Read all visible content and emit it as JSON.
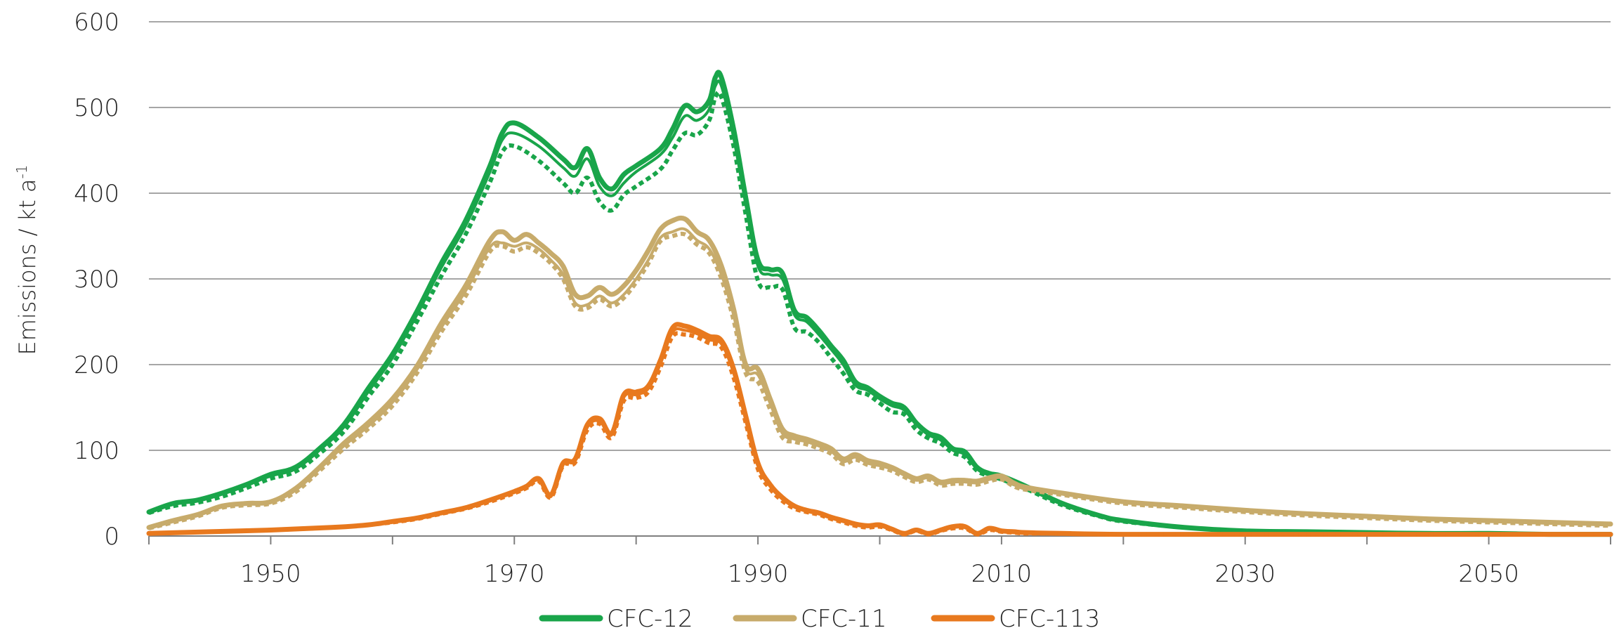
{
  "chart_data": {
    "type": "line",
    "title": "",
    "xlabel": "",
    "ylabel": "Emissions / kt a",
    "ylabel_superscript": "-1",
    "xlim": [
      1940,
      2060
    ],
    "ylim": [
      0,
      600
    ],
    "yticks": [
      0,
      100,
      200,
      300,
      400,
      500,
      600
    ],
    "xticks": [
      1950,
      1970,
      1990,
      2010,
      2030,
      2050
    ],
    "grid": "horizontal",
    "legend_position": "bottom-center",
    "colors": {
      "CFC-12": "#19a54a",
      "CFC-11": "#c7ab6b",
      "CFC-113": "#e8791e"
    },
    "legend": [
      "CFC-12",
      "CFC-11",
      "CFC-113"
    ],
    "series": [
      {
        "name": "CFC-12",
        "group": "CFC-12",
        "style": "thick",
        "x": [
          1940,
          1942,
          1944,
          1946,
          1948,
          1950,
          1952,
          1954,
          1956,
          1958,
          1960,
          1962,
          1964,
          1966,
          1968,
          1969,
          1970,
          1972,
          1974,
          1975,
          1976,
          1977,
          1978,
          1979,
          1980,
          1982,
          1983,
          1984,
          1985,
          1986,
          1986.5,
          1987,
          1988,
          1989,
          1990,
          1991,
          1992,
          1993,
          1994,
          1995,
          1996,
          1997,
          1998,
          1999,
          2000,
          2001,
          2002,
          2003,
          2004,
          2005,
          2006,
          2007,
          2008,
          2009,
          2010,
          2012,
          2015,
          2018,
          2020,
          2025,
          2030,
          2035,
          2040,
          2045,
          2050,
          2055,
          2060
        ],
        "values": [
          28,
          38,
          42,
          50,
          60,
          72,
          80,
          102,
          130,
          172,
          212,
          262,
          318,
          368,
          432,
          470,
          482,
          465,
          440,
          430,
          452,
          418,
          405,
          422,
          432,
          452,
          475,
          502,
          495,
          508,
          535,
          535,
          475,
          395,
          322,
          311,
          307,
          263,
          255,
          240,
          222,
          205,
          180,
          173,
          163,
          155,
          150,
          132,
          120,
          115,
          102,
          98,
          80,
          73,
          70,
          58,
          38,
          24,
          18,
          10,
          6,
          5,
          4,
          3,
          3,
          2,
          2
        ]
      },
      {
        "name": "",
        "group": "CFC-12",
        "style": "thin",
        "x": [
          1940,
          1942,
          1944,
          1946,
          1948,
          1950,
          1952,
          1954,
          1956,
          1958,
          1960,
          1962,
          1964,
          1966,
          1968,
          1969,
          1970,
          1972,
          1974,
          1975,
          1976,
          1977,
          1978,
          1979,
          1980,
          1982,
          1983,
          1984,
          1985,
          1986,
          1986.5,
          1987,
          1988,
          1989,
          1990,
          1991,
          1992,
          1993,
          1994,
          1995,
          1996,
          1997,
          1998,
          1999,
          2000,
          2001,
          2002,
          2003,
          2004,
          2005,
          2006,
          2007,
          2008,
          2009,
          2010,
          2012,
          2015,
          2018,
          2020,
          2025,
          2030,
          2035,
          2040,
          2045,
          2050,
          2055,
          2060
        ],
        "values": [
          28,
          37,
          41,
          49,
          59,
          70,
          78,
          100,
          127,
          168,
          208,
          258,
          313,
          362,
          425,
          462,
          470,
          455,
          430,
          420,
          440,
          408,
          397,
          412,
          425,
          445,
          465,
          490,
          485,
          498,
          525,
          525,
          465,
          387,
          315,
          305,
          300,
          258,
          250,
          235,
          218,
          200,
          176,
          170,
          160,
          152,
          147,
          130,
          118,
          112,
          100,
          95,
          78,
          71,
          68,
          56,
          37,
          23,
          17,
          10,
          6,
          5,
          4,
          3,
          3,
          2,
          2
        ]
      },
      {
        "name": "",
        "group": "CFC-12",
        "style": "dotted",
        "x": [
          1940,
          1942,
          1944,
          1946,
          1948,
          1950,
          1952,
          1954,
          1956,
          1958,
          1960,
          1962,
          1964,
          1966,
          1968,
          1969,
          1970,
          1972,
          1974,
          1975,
          1976,
          1977,
          1978,
          1979,
          1980,
          1982,
          1983,
          1984,
          1985,
          1986,
          1986.5,
          1987,
          1988,
          1989,
          1990,
          1991,
          1992,
          1993,
          1994,
          1995,
          1996,
          1997,
          1998,
          1999,
          2000,
          2001,
          2002,
          2003,
          2004,
          2005,
          2006,
          2007,
          2008,
          2009,
          2010,
          2012,
          2015,
          2018,
          2020,
          2025,
          2030,
          2035,
          2040,
          2045,
          2050,
          2055,
          2060
        ],
        "values": [
          27,
          35,
          39,
          46,
          56,
          67,
          75,
          96,
          122,
          162,
          200,
          250,
          303,
          352,
          413,
          448,
          455,
          438,
          412,
          400,
          418,
          390,
          380,
          398,
          408,
          428,
          450,
          470,
          468,
          485,
          512,
          512,
          455,
          375,
          298,
          290,
          288,
          243,
          238,
          226,
          208,
          190,
          170,
          165,
          155,
          145,
          142,
          124,
          114,
          108,
          97,
          92,
          76,
          70,
          66,
          55,
          36,
          23,
          17,
          10,
          6,
          5,
          4,
          3,
          3,
          2,
          2
        ]
      },
      {
        "name": "CFC-11",
        "group": "CFC-11",
        "style": "thick",
        "x": [
          1940,
          1942,
          1944,
          1946,
          1948,
          1950,
          1952,
          1954,
          1956,
          1958,
          1960,
          1962,
          1964,
          1966,
          1968,
          1969,
          1970,
          1971,
          1972,
          1973,
          1974,
          1975,
          1976,
          1977,
          1978,
          1979,
          1980,
          1981,
          1982,
          1983,
          1984,
          1985,
          1986,
          1987,
          1988,
          1989,
          1990,
          1991,
          1992,
          1993,
          1994,
          1995,
          1996,
          1997,
          1998,
          1999,
          2000,
          2001,
          2002,
          2003,
          2004,
          2005,
          2006,
          2007,
          2008,
          2009,
          2010,
          2011,
          2012,
          2015,
          2020,
          2025,
          2030,
          2035,
          2040,
          2045,
          2050,
          2055,
          2060
        ],
        "values": [
          10,
          18,
          25,
          35,
          38,
          40,
          55,
          80,
          108,
          132,
          160,
          198,
          248,
          292,
          345,
          355,
          345,
          352,
          342,
          330,
          315,
          282,
          280,
          290,
          282,
          292,
          310,
          333,
          358,
          368,
          370,
          355,
          345,
          315,
          265,
          200,
          195,
          160,
          125,
          117,
          113,
          108,
          102,
          90,
          95,
          88,
          85,
          80,
          73,
          67,
          70,
          63,
          65,
          65,
          64,
          68,
          70,
          62,
          57,
          50,
          40,
          35,
          30,
          26,
          23,
          20,
          18,
          16,
          14
        ]
      },
      {
        "name": "",
        "group": "CFC-11",
        "style": "thin",
        "x": [
          1940,
          1942,
          1944,
          1946,
          1948,
          1950,
          1952,
          1954,
          1956,
          1958,
          1960,
          1962,
          1964,
          1966,
          1968,
          1969,
          1970,
          1971,
          1972,
          1973,
          1974,
          1975,
          1976,
          1977,
          1978,
          1979,
          1980,
          1981,
          1982,
          1983,
          1984,
          1985,
          1986,
          1987,
          1988,
          1989,
          1990,
          1991,
          1992,
          1993,
          1994,
          1995,
          1996,
          1997,
          1998,
          1999,
          2000,
          2001,
          2002,
          2003,
          2004,
          2005,
          2006,
          2007,
          2008,
          2009,
          2010,
          2011,
          2012,
          2015,
          2020,
          2025,
          2030,
          2035,
          2040,
          2045,
          2050,
          2055,
          2060
        ],
        "values": [
          10,
          17,
          24,
          34,
          37,
          39,
          53,
          78,
          105,
          128,
          156,
          194,
          243,
          286,
          337,
          342,
          338,
          342,
          335,
          322,
          305,
          272,
          270,
          280,
          272,
          282,
          300,
          322,
          348,
          355,
          358,
          345,
          335,
          305,
          258,
          195,
          188,
          155,
          120,
          113,
          110,
          105,
          99,
          87,
          92,
          85,
          82,
          78,
          71,
          65,
          68,
          61,
          63,
          63,
          62,
          66,
          68,
          60,
          55,
          49,
          39,
          34,
          29,
          25,
          22,
          19,
          17,
          15,
          13
        ]
      },
      {
        "name": "",
        "group": "CFC-11",
        "style": "dotted",
        "x": [
          1940,
          1942,
          1944,
          1946,
          1948,
          1950,
          1952,
          1954,
          1956,
          1958,
          1960,
          1962,
          1964,
          1966,
          1968,
          1969,
          1970,
          1971,
          1972,
          1973,
          1974,
          1975,
          1976,
          1977,
          1978,
          1979,
          1980,
          1981,
          1982,
          1983,
          1984,
          1985,
          1986,
          1987,
          1988,
          1989,
          1990,
          1991,
          1992,
          1993,
          1994,
          1995,
          1996,
          1997,
          1998,
          1999,
          2000,
          2001,
          2002,
          2003,
          2004,
          2005,
          2006,
          2007,
          2008,
          2009,
          2010,
          2011,
          2012,
          2015,
          2020,
          2025,
          2030,
          2035,
          2040,
          2045,
          2050,
          2055,
          2060
        ],
        "values": [
          9,
          16,
          23,
          33,
          36,
          38,
          51,
          76,
          102,
          125,
          152,
          190,
          238,
          280,
          332,
          338,
          332,
          337,
          330,
          318,
          300,
          268,
          266,
          276,
          268,
          278,
          296,
          318,
          344,
          350,
          352,
          340,
          330,
          300,
          252,
          190,
          180,
          148,
          115,
          110,
          107,
          102,
          96,
          84,
          89,
          83,
          80,
          76,
          69,
          63,
          66,
          59,
          61,
          61,
          60,
          64,
          66,
          58,
          54,
          48,
          38,
          33,
          28,
          24,
          21,
          18,
          16,
          14,
          12
        ]
      },
      {
        "name": "CFC-113",
        "group": "CFC-113",
        "style": "thick",
        "x": [
          1940,
          1945,
          1950,
          1955,
          1958,
          1960,
          1962,
          1964,
          1966,
          1968,
          1970,
          1971,
          1972,
          1973,
          1974,
          1975,
          1976,
          1977,
          1978,
          1979,
          1980,
          1981,
          1982,
          1983,
          1984,
          1985,
          1986,
          1987,
          1988,
          1989,
          1990,
          1991,
          1992,
          1993,
          1994,
          1995,
          1996,
          1997,
          1998,
          1999,
          2000,
          2001,
          2002,
          2003,
          2004,
          2005,
          2006,
          2007,
          2008,
          2009,
          2010,
          2011,
          2012,
          2015,
          2020,
          2030,
          2040,
          2050,
          2060
        ],
        "values": [
          3,
          5,
          7,
          10,
          13,
          17,
          21,
          27,
          33,
          42,
          52,
          58,
          67,
          48,
          85,
          90,
          130,
          137,
          120,
          165,
          168,
          175,
          205,
          243,
          245,
          240,
          233,
          228,
          195,
          140,
          85,
          60,
          45,
          35,
          30,
          27,
          22,
          18,
          14,
          12,
          13,
          8,
          3,
          7,
          3,
          7,
          11,
          11,
          3,
          9,
          6,
          5,
          4,
          3,
          2,
          2,
          2,
          2,
          2
        ]
      },
      {
        "name": "",
        "group": "CFC-113",
        "style": "thin",
        "x": [
          1940,
          1945,
          1950,
          1955,
          1958,
          1960,
          1962,
          1964,
          1966,
          1968,
          1970,
          1971,
          1972,
          1973,
          1974,
          1975,
          1976,
          1977,
          1978,
          1979,
          1980,
          1981,
          1982,
          1983,
          1984,
          1985,
          1986,
          1987,
          1988,
          1989,
          1990,
          1991,
          1992,
          1993,
          1994,
          1995,
          1996,
          1997,
          1998,
          1999,
          2000,
          2001,
          2002,
          2003,
          2004,
          2005,
          2006,
          2007,
          2008,
          2009,
          2010,
          2011,
          2012,
          2015,
          2020,
          2030,
          2040,
          2050,
          2060
        ],
        "values": [
          3,
          5,
          7,
          10,
          13,
          17,
          21,
          27,
          33,
          41,
          51,
          57,
          65,
          46,
          84,
          88,
          127,
          134,
          118,
          162,
          165,
          172,
          201,
          238,
          240,
          236,
          229,
          224,
          190,
          136,
          82,
          58,
          43,
          34,
          29,
          26,
          21,
          17,
          13,
          11,
          12,
          7,
          3,
          6,
          3,
          6,
          10,
          10,
          3,
          8,
          5,
          5,
          4,
          3,
          2,
          2,
          2,
          2,
          2
        ]
      },
      {
        "name": "",
        "group": "CFC-113",
        "style": "dotted",
        "x": [
          1940,
          1945,
          1950,
          1955,
          1958,
          1960,
          1962,
          1964,
          1966,
          1968,
          1970,
          1971,
          1972,
          1973,
          1974,
          1975,
          1976,
          1977,
          1978,
          1979,
          1980,
          1981,
          1982,
          1983,
          1984,
          1985,
          1986,
          1987,
          1988,
          1989,
          1990,
          1991,
          1992,
          1993,
          1994,
          1995,
          1996,
          1997,
          1998,
          1999,
          2000,
          2001,
          2002,
          2003,
          2004,
          2005,
          2006,
          2007,
          2008,
          2009,
          2010,
          2011,
          2012,
          2015,
          2020,
          2030,
          2040,
          2050,
          2060
        ],
        "values": [
          3,
          5,
          7,
          10,
          13,
          16,
          20,
          26,
          32,
          40,
          50,
          56,
          64,
          45,
          82,
          86,
          124,
          131,
          115,
          158,
          161,
          168,
          197,
          233,
          235,
          232,
          225,
          220,
          185,
          132,
          78,
          55,
          41,
          32,
          28,
          25,
          20,
          16,
          12,
          10,
          11,
          7,
          2,
          6,
          2,
          6,
          9,
          9,
          2,
          7,
          5,
          4,
          3,
          3,
          2,
          2,
          2,
          2,
          2
        ]
      }
    ]
  }
}
